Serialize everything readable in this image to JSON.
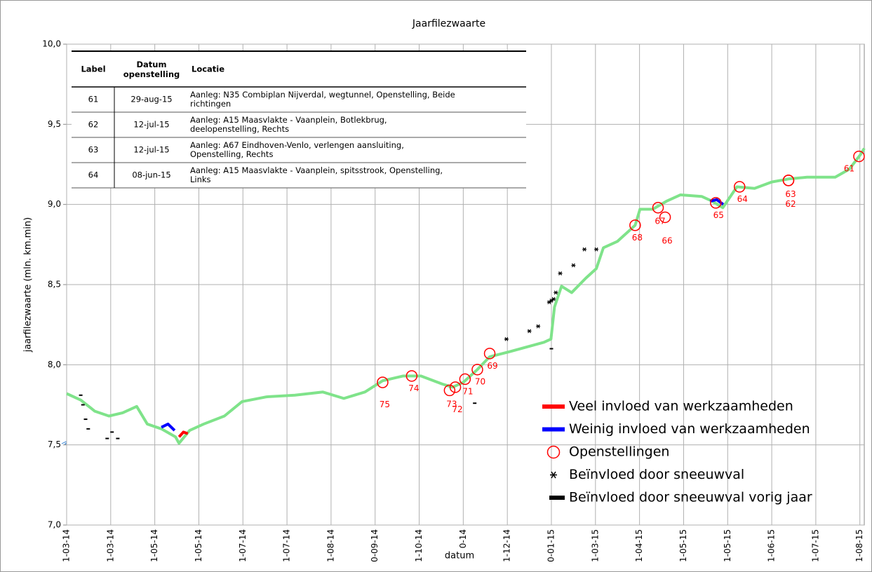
{
  "chart_data": {
    "type": "line",
    "title": "Jaarfilezwaarte",
    "xlabel": "datum",
    "ylabel": "jaarfilezwaarte (mln. km.min)",
    "categories": [
      "1-03-14",
      "1-03-14",
      "1-05-14",
      "1-05-14",
      "1-07-14",
      "1-07-14",
      "1-08-14",
      "0-09-14",
      "1-10-14",
      "0-14",
      "1-12-14",
      "0-01-15",
      "1-03-15",
      "1-04-15",
      "1-05-15",
      "1-05-15",
      "1-06-15",
      "1-07-15",
      "1-08-15"
    ],
    "xlim": [
      0,
      18.1
    ],
    "ylim": [
      7.0,
      10.0
    ],
    "yticks": [
      {
        "value": 7.0,
        "label": "7,0"
      },
      {
        "value": 7.5,
        "label": "7,5"
      },
      {
        "value": 8.0,
        "label": "8,0"
      },
      {
        "value": 8.5,
        "label": "8,5"
      },
      {
        "value": 9.0,
        "label": "9,0"
      },
      {
        "value": 9.5,
        "label": "9,5"
      },
      {
        "value": 10.0,
        "label": "10,0"
      }
    ],
    "grid": true,
    "legend": "lower right",
    "line": {
      "color": "#7fe38a",
      "x": [
        0,
        0.32,
        0.64,
        0.96,
        1.27,
        1.59,
        1.83,
        2.15,
        2.47,
        2.55,
        2.79,
        3.11,
        3.58,
        3.98,
        4.54,
        5.18,
        5.81,
        6.29,
        6.77,
        7.17,
        7.64,
        8.04,
        8.52,
        8.76,
        9.0,
        9.32,
        9.6,
        10.03,
        10.43,
        10.83,
        10.99,
        11.07,
        11.23,
        11.46,
        11.78,
        12.02,
        12.18,
        12.5,
        12.9,
        13.01,
        13.3,
        13.61,
        13.93,
        14.41,
        14.65,
        14.89,
        15.21,
        15.61,
        16.0,
        16.4,
        16.8,
        17.44,
        17.76,
        18.01,
        18.1
      ],
      "values": [
        7.82,
        7.78,
        7.71,
        7.68,
        7.7,
        7.74,
        7.63,
        7.6,
        7.55,
        7.51,
        7.59,
        7.63,
        7.68,
        7.77,
        7.8,
        7.81,
        7.83,
        7.79,
        7.83,
        7.9,
        7.93,
        7.93,
        7.88,
        7.86,
        7.89,
        7.97,
        8.05,
        8.08,
        8.11,
        8.14,
        8.16,
        8.36,
        8.49,
        8.45,
        8.54,
        8.6,
        8.73,
        8.77,
        8.87,
        8.97,
        8.97,
        9.02,
        9.06,
        9.05,
        9.02,
        8.98,
        9.11,
        9.1,
        9.14,
        9.16,
        9.17,
        9.17,
        9.22,
        9.31,
        9.35
      ]
    },
    "series": [
      {
        "name": "Veel invloed van werkzaamheden",
        "color": "#ff0000",
        "marker": "line",
        "x": [
          2.55,
          2.65,
          2.75
        ],
        "values": [
          7.55,
          7.58,
          7.57
        ]
      },
      {
        "name": "Weinig invloed van werkzaamheden",
        "color": "#0000ff",
        "marker": "line",
        "x": [
          2.15,
          2.3,
          2.45,
          null,
          14.6,
          14.75,
          14.9
        ],
        "values": [
          7.61,
          7.63,
          7.59,
          null,
          9.02,
          9.03,
          9.0
        ]
      },
      {
        "name": "Openstellingen",
        "color": "#ff0000",
        "marker": "circle",
        "x": [
          7.17,
          7.83,
          8.69,
          8.82,
          9.04,
          9.32,
          9.6,
          12.9,
          13.42,
          13.58,
          14.73,
          15.27,
          16.38,
          16.38,
          17.98
        ],
        "values": [
          7.89,
          7.93,
          7.84,
          7.86,
          7.91,
          7.97,
          8.07,
          8.87,
          8.98,
          8.92,
          9.01,
          9.11,
          9.15,
          9.15,
          9.3
        ],
        "labels": [
          "75",
          "74",
          "73",
          "72",
          "71",
          "70",
          "69",
          "68",
          "67",
          "66",
          "65",
          "64",
          "63",
          "62",
          "61"
        ]
      },
      {
        "name": "Beïnvloed door sneeuwval",
        "color": "#000000",
        "marker": "star",
        "x": [
          9.98,
          10.5,
          10.7,
          10.95,
          11.0,
          11.05,
          11.1,
          11.2,
          11.5,
          11.75,
          12.02
        ],
        "values": [
          8.16,
          8.21,
          8.24,
          8.39,
          8.4,
          8.41,
          8.45,
          8.57,
          8.62,
          8.72,
          8.72
        ]
      },
      {
        "name": "Beïnvloed door sneeuwval vorig jaar",
        "color": "#000000",
        "marker": "dash",
        "x": [
          0.32,
          0.37,
          0.43,
          0.49,
          0.92,
          1.03,
          1.16,
          11.0,
          9.26
        ],
        "values": [
          7.81,
          7.75,
          7.66,
          7.6,
          7.54,
          7.58,
          7.54,
          8.1,
          7.76
        ]
      }
    ],
    "table": {
      "headers": [
        "Label",
        "Datum openstelling",
        "Locatie"
      ],
      "rows": [
        [
          "61",
          "29-aug-15",
          "Aanleg: N35 Combiplan Nijverdal, wegtunnel, Openstelling, Beide richtingen"
        ],
        [
          "62",
          "12-jul-15",
          "Aanleg: A15 Maasvlakte - Vaanplein, Botlekbrug, deelopenstelling, Rechts"
        ],
        [
          "63",
          "12-jul-15",
          "Aanleg: A67 Eindhoven-Venlo, verlengen aansluiting, Openstelling, Rechts"
        ],
        [
          "64",
          "08-jun-15",
          "Aanleg: A15 Maasvlakte - Vaanplein, spitsstrook, Openstelling, Links"
        ]
      ]
    }
  }
}
